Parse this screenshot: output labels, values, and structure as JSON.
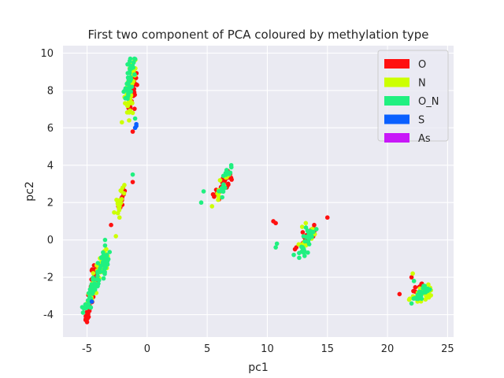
{
  "chart_data": {
    "type": "scatter",
    "title": "First two component of PCA coloured by methylation type",
    "xlabel": "pc1",
    "ylabel": "pc2",
    "xlim": [
      -7,
      25.5
    ],
    "ylim": [
      -5.2,
      10.4
    ],
    "xticks": [
      -5,
      0,
      5,
      10,
      15,
      20,
      25
    ],
    "yticks": [
      -4,
      -2,
      0,
      2,
      4,
      6,
      8,
      10
    ],
    "grid": true,
    "legend_position": "top-right",
    "series": [
      {
        "name": "O",
        "color": "#ff1010",
        "clusters": [
          {
            "start": [
              -5.0,
              -4.3
            ],
            "end": [
              -4.3,
              -1.4
            ],
            "n": 55,
            "spread": 0.12
          },
          {
            "start": [
              -2.3,
              1.6
            ],
            "end": [
              -1.9,
              2.8
            ],
            "n": 14,
            "spread": 0.1
          },
          {
            "start": [
              -1.4,
              7.2
            ],
            "end": [
              -1.0,
              8.7
            ],
            "n": 40,
            "spread": 0.15
          },
          {
            "start": [
              5.7,
              2.3
            ],
            "end": [
              6.9,
              3.5
            ],
            "n": 30,
            "spread": 0.15
          },
          {
            "start": [
              12.6,
              -0.2
            ],
            "end": [
              14.0,
              0.6
            ],
            "n": 18,
            "spread": 0.18
          },
          {
            "start": [
              22.2,
              -2.9
            ],
            "end": [
              22.9,
              -2.4
            ],
            "n": 8,
            "spread": 0.1
          }
        ],
        "points": [
          [
            -1.2,
            5.8
          ],
          [
            -1.2,
            3.1
          ],
          [
            -3.0,
            0.8
          ],
          [
            -3.8,
            -1.0
          ],
          [
            10.5,
            1.0
          ],
          [
            10.7,
            0.9
          ],
          [
            12.3,
            -0.5
          ],
          [
            15.0,
            1.2
          ],
          [
            13.9,
            0.8
          ],
          [
            21.0,
            -2.9
          ],
          [
            22.0,
            -2.0
          ],
          [
            -2.0,
            2.7
          ],
          [
            -5.0,
            -4.4
          ],
          [
            -4.8,
            -3.8
          ],
          [
            -2.4,
            1.8
          ],
          [
            6.7,
            3.7
          ]
        ]
      },
      {
        "name": "N",
        "color": "#ccff00",
        "clusters": [
          {
            "start": [
              -4.8,
              -3.4
            ],
            "end": [
              -3.3,
              -0.6
            ],
            "n": 45,
            "spread": 0.2
          },
          {
            "start": [
              -2.5,
              1.5
            ],
            "end": [
              -2.0,
              3.0
            ],
            "n": 20,
            "spread": 0.12
          },
          {
            "start": [
              -1.7,
              7.0
            ],
            "end": [
              -1.1,
              9.6
            ],
            "n": 45,
            "spread": 0.18
          },
          {
            "start": [
              5.8,
              2.2
            ],
            "end": [
              6.8,
              3.6
            ],
            "n": 14,
            "spread": 0.15
          },
          {
            "start": [
              12.7,
              -0.3
            ],
            "end": [
              13.9,
              0.5
            ],
            "n": 10,
            "spread": 0.2
          },
          {
            "start": [
              22.0,
              -3.0
            ],
            "end": [
              23.7,
              -2.8
            ],
            "n": 25,
            "spread": 0.2
          }
        ],
        "points": [
          [
            -2.1,
            6.3
          ],
          [
            -1.5,
            6.4
          ],
          [
            -2.6,
            0.2
          ],
          [
            -3.4,
            -0.5
          ],
          [
            5.4,
            1.8
          ],
          [
            13.2,
            0.9
          ],
          [
            12.9,
            0.7
          ],
          [
            21.8,
            -3.2
          ],
          [
            22.1,
            -1.8
          ],
          [
            -1.2,
            6.8
          ],
          [
            -2.3,
            1.2
          ]
        ]
      },
      {
        "name": "O_N",
        "color": "#20f080",
        "clusters": [
          {
            "start": [
              -5.3,
              -3.9
            ],
            "end": [
              -3.4,
              -0.8
            ],
            "n": 70,
            "spread": 0.2
          },
          {
            "start": [
              -1.8,
              7.4
            ],
            "end": [
              -1.2,
              9.7
            ],
            "n": 40,
            "spread": 0.18
          },
          {
            "start": [
              6.0,
              2.4
            ],
            "end": [
              7.0,
              3.9
            ],
            "n": 18,
            "spread": 0.15
          },
          {
            "start": [
              12.8,
              -0.8
            ],
            "end": [
              13.8,
              0.5
            ],
            "n": 30,
            "spread": 0.2
          },
          {
            "start": [
              22.3,
              -3.2
            ],
            "end": [
              23.3,
              -2.5
            ],
            "n": 25,
            "spread": 0.15
          }
        ],
        "points": [
          [
            -1.2,
            3.5
          ],
          [
            -3.5,
            -0.3
          ],
          [
            -3.5,
            0.0
          ],
          [
            4.5,
            2.0
          ],
          [
            4.7,
            2.6
          ],
          [
            10.7,
            -0.4
          ],
          [
            10.8,
            -0.2
          ],
          [
            12.2,
            -0.8
          ],
          [
            13.4,
            -0.1
          ],
          [
            22.0,
            -3.4
          ],
          [
            22.2,
            -2.2
          ],
          [
            -1.4,
            9.7
          ],
          [
            -1.0,
            6.5
          ],
          [
            -5.4,
            -3.6
          ],
          [
            7.0,
            4.0
          ]
        ]
      },
      {
        "name": "S",
        "color": "#0a60ff",
        "points": [
          [
            -0.9,
            6.2
          ],
          [
            -0.9,
            6.1
          ],
          [
            -1.0,
            6.0
          ],
          [
            -4.6,
            -3.3
          ]
        ]
      },
      {
        "name": "As",
        "color": "#c818f8",
        "points": []
      }
    ]
  }
}
